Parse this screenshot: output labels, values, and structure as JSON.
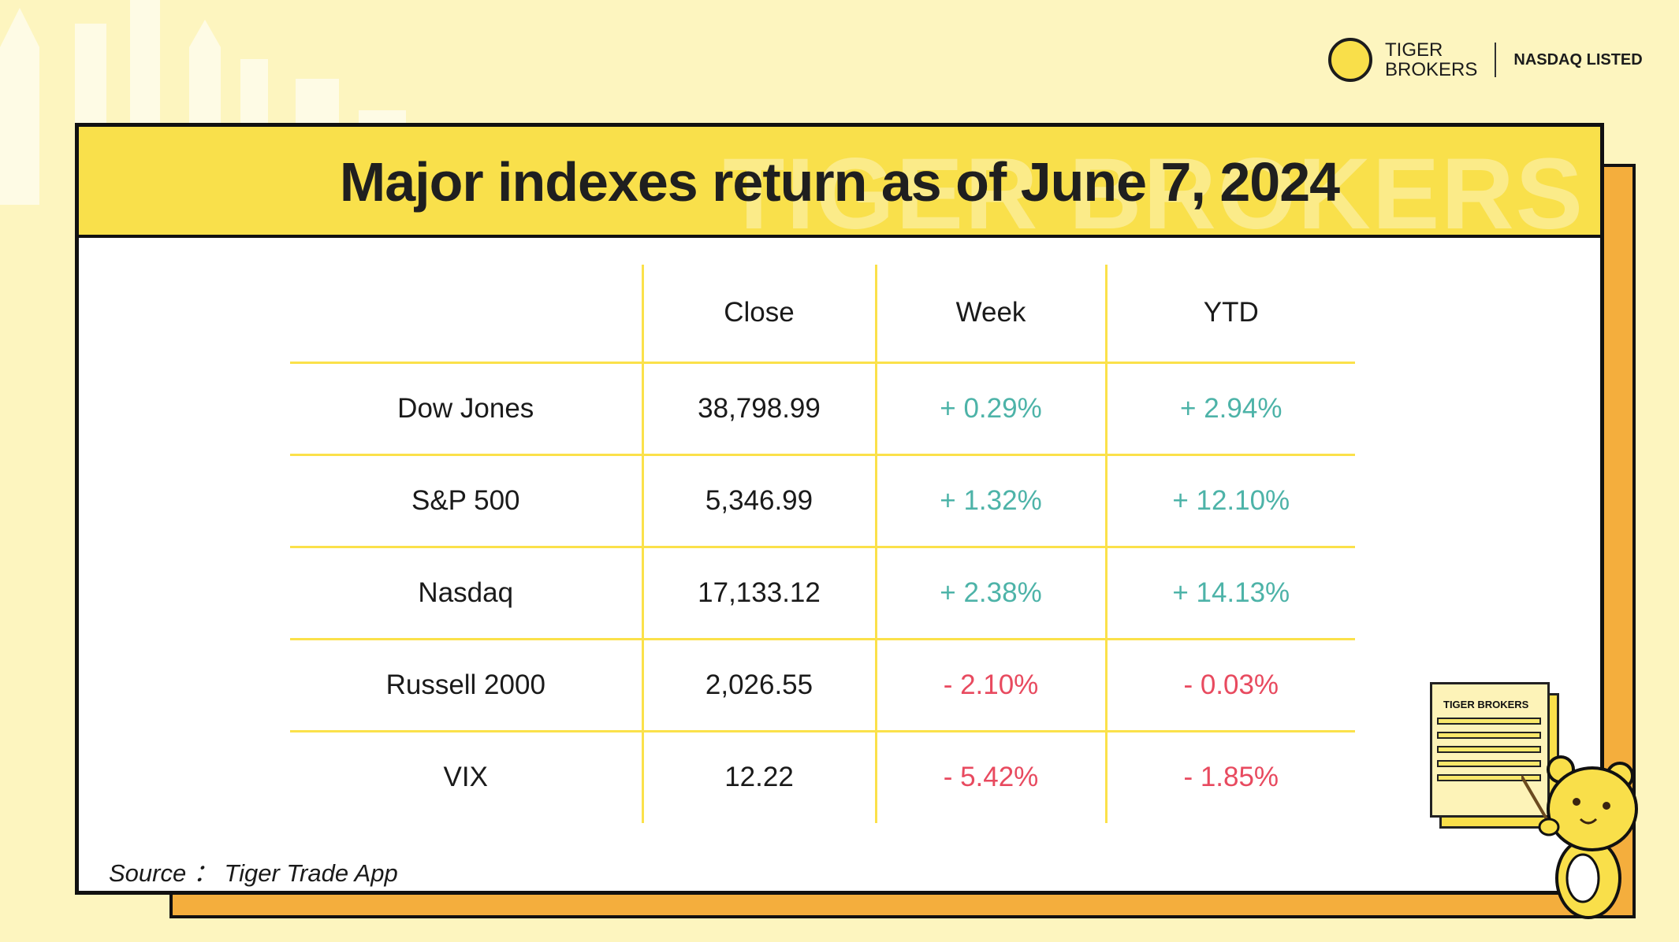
{
  "brand": {
    "name_line1": "TIGER",
    "name_line2": "BROKERS",
    "listing": "NASDAQ LISTED",
    "watermark": "TIGER BROKERS"
  },
  "title": "Major indexes return as of June 7, 2024",
  "table": {
    "headers": [
      "",
      "Close",
      "Week",
      "YTD"
    ],
    "rows": [
      {
        "name": "Dow Jones",
        "close": "38,798.99",
        "week": "+ 0.29%",
        "ytd": "+ 2.94%",
        "week_dir": "pos",
        "ytd_dir": "pos"
      },
      {
        "name": "S&P 500",
        "close": "5,346.99",
        "week": "+ 1.32%",
        "ytd": "+ 12.10%",
        "week_dir": "pos",
        "ytd_dir": "pos"
      },
      {
        "name": "Nasdaq",
        "close": "17,133.12",
        "week": "+ 2.38%",
        "ytd": "+ 14.13%",
        "week_dir": "pos",
        "ytd_dir": "pos"
      },
      {
        "name": "Russell 2000",
        "close": "2,026.55",
        "week": "- 2.10%",
        "ytd": "- 0.03%",
        "week_dir": "neg",
        "ytd_dir": "neg"
      },
      {
        "name": "VIX",
        "close": "12.22",
        "week": "- 5.42%",
        "ytd": "- 1.85%",
        "week_dir": "neg",
        "ytd_dir": "neg"
      }
    ]
  },
  "source": "Source ： Tiger Trade App",
  "mascot": {
    "doc_title": "TIGER BROKERS"
  },
  "colors": {
    "positive": "#4db3a8",
    "negative": "#e84a5f",
    "header_band": "#f9e04b",
    "background": "#fdf5bf",
    "frame_shadow": "#f4ae3d"
  }
}
